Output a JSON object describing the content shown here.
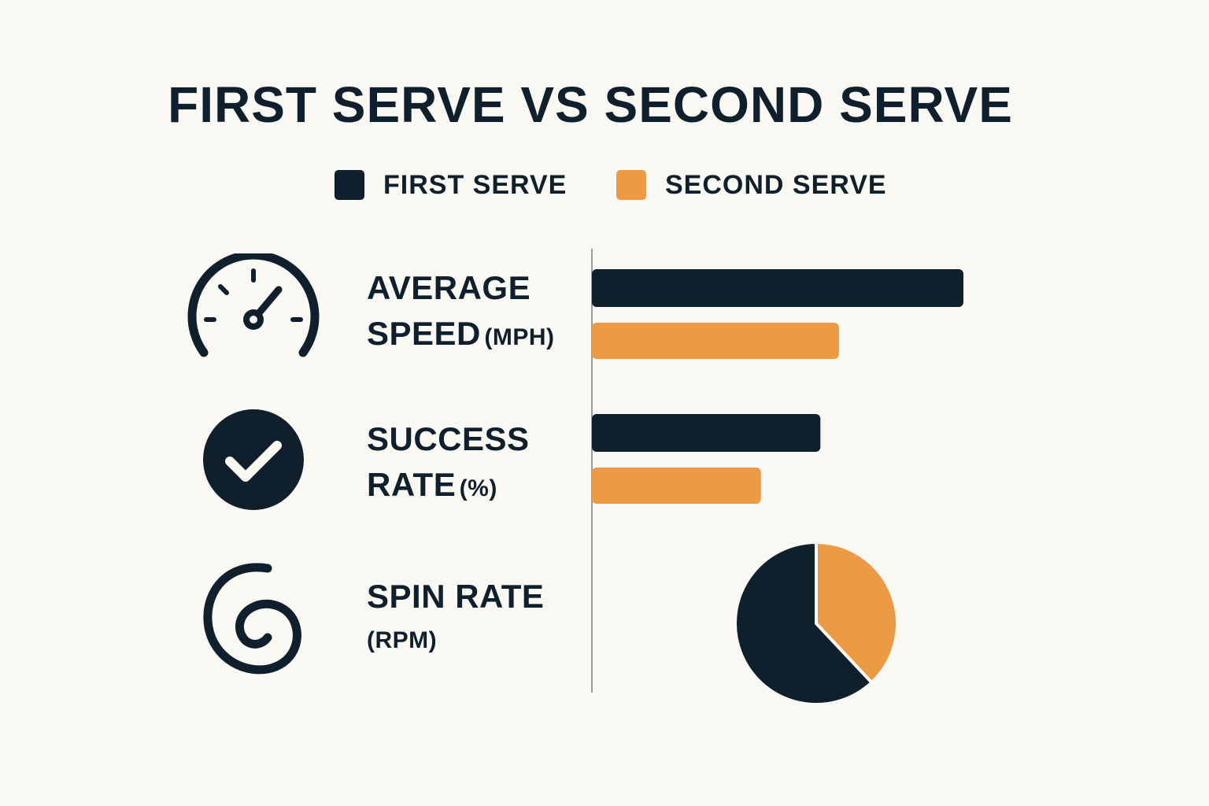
{
  "chart_data": {
    "type": "bar",
    "title": "FIRST SERVE VS SECOND SERVE",
    "legend": [
      {
        "name": "FIRST SERVE",
        "color": "#0f1f2c"
      },
      {
        "name": "SECOND SERVE",
        "color": "#ec9a43"
      }
    ],
    "metrics": [
      {
        "label_line1": "AVERAGE",
        "label_line2": "SPEED",
        "unit": "(MPH)",
        "icon": "speedometer-icon",
        "first": 100,
        "second": 66.5
      },
      {
        "label_line1": "SUCCESS",
        "label_line2": "RATE",
        "unit": "(%)",
        "icon": "checkmark-circle-icon",
        "first": 61.5,
        "second": 45.5
      },
      {
        "label_line1": "SPIN RATE",
        "label_line2": "",
        "unit": "(RPM)",
        "icon": "spiral-icon",
        "pie": [
          {
            "name": "FIRST SERVE",
            "value": 62
          },
          {
            "name": "SECOND SERVE",
            "value": 38
          }
        ]
      }
    ],
    "xlim": [
      0,
      100
    ],
    "grid": false,
    "legend_position": "top-center",
    "colors": {
      "first": "#0f1f2c",
      "second": "#ec9a43",
      "background": "#faf8f3"
    }
  }
}
